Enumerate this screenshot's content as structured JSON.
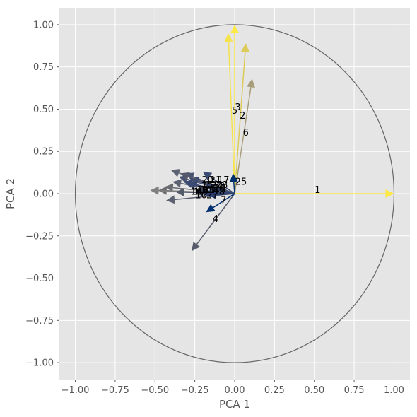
{
  "chart_data": {
    "type": "biplot",
    "xlabel": "PCA 1",
    "ylabel": "PCA 2",
    "xlim": [
      -1.1,
      1.1
    ],
    "ylim": [
      -1.1,
      1.1
    ],
    "xticks": [
      "−1.00",
      "−0.75",
      "−0.50",
      "−0.25",
      "0.00",
      "0.25",
      "0.50",
      "0.75",
      "1.00"
    ],
    "xtick_values": [
      -1.0,
      -0.75,
      -0.5,
      -0.25,
      0.0,
      0.25,
      0.5,
      0.75,
      1.0
    ],
    "yticks": [
      "−1.00",
      "−0.75",
      "−0.50",
      "−0.25",
      "0.00",
      "0.25",
      "0.50",
      "0.75",
      "1.00"
    ],
    "ytick_values": [
      -1.0,
      -0.75,
      -0.5,
      -0.25,
      0.0,
      0.25,
      0.5,
      0.75,
      1.0
    ],
    "grid": true,
    "unit_circle": true,
    "colors": {
      "background": "#E5E5E5",
      "grid": "#FFFFFF",
      "circle": "#666666"
    },
    "vectors": [
      {
        "label": "1",
        "x": 1.0,
        "y": 0.0,
        "color": "#FDE945",
        "label_pos": [
          0.52,
          0.02
        ]
      },
      {
        "label": "3",
        "x": 0.0,
        "y": 1.0,
        "color": "#FDE945",
        "label_pos": [
          0.02,
          0.51
        ]
      },
      {
        "label": "5",
        "x": -0.04,
        "y": 0.95,
        "color": "#F5E34E",
        "label_pos": [
          0.0,
          0.49
        ]
      },
      {
        "label": "2",
        "x": 0.07,
        "y": 0.89,
        "color": "#DCCB58",
        "label_pos": [
          0.05,
          0.46
        ]
      },
      {
        "label": "6",
        "x": 0.11,
        "y": 0.68,
        "color": "#A99E7A",
        "label_pos": [
          0.07,
          0.36
        ]
      },
      {
        "label": "25",
        "x": -0.01,
        "y": 0.12,
        "color": "#00306F",
        "label_pos": [
          0.04,
          0.07
        ]
      },
      {
        "label": "4",
        "x": -0.27,
        "y": -0.34,
        "color": "#555A6A",
        "label_pos": [
          -0.12,
          -0.15
        ]
      },
      {
        "label": "7",
        "x": -0.18,
        "y": -0.11,
        "color": "#00306F",
        "label_pos": [
          -0.07,
          -0.04
        ]
      },
      {
        "label": "20",
        "x": -0.2,
        "y": 0.13,
        "color": "#3A4A72",
        "label_pos": [
          -0.17,
          0.08
        ]
      },
      {
        "label": "21",
        "x": -0.31,
        "y": 0.12,
        "color": "#4A5370",
        "label_pos": [
          -0.12,
          0.08
        ]
      },
      {
        "label": "17",
        "x": -0.4,
        "y": 0.14,
        "color": "#5D6272",
        "label_pos": [
          -0.07,
          0.08
        ]
      },
      {
        "label": "15",
        "x": -0.28,
        "y": 0.09,
        "color": "#3A4A72",
        "label_pos": [
          -0.17,
          0.05
        ]
      },
      {
        "label": "12",
        "x": -0.35,
        "y": 0.1,
        "color": "#4A5370",
        "label_pos": [
          -0.15,
          0.05
        ]
      },
      {
        "label": "13",
        "x": -0.34,
        "y": 0.12,
        "color": "#555A6A",
        "label_pos": [
          -0.13,
          0.05
        ]
      },
      {
        "label": "23",
        "x": -0.39,
        "y": 0.07,
        "color": "#5D6272",
        "label_pos": [
          -0.11,
          0.05
        ]
      },
      {
        "label": "24",
        "x": -0.3,
        "y": 0.06,
        "color": "#3A4A72",
        "label_pos": [
          -0.09,
          0.03
        ]
      },
      {
        "label": "11",
        "x": -0.32,
        "y": 0.07,
        "color": "#3A4A72",
        "label_pos": [
          -0.16,
          0.02
        ]
      },
      {
        "label": "14",
        "x": -0.44,
        "y": 0.04,
        "color": "#6A6B70",
        "label_pos": [
          -0.2,
          0.02
        ]
      },
      {
        "label": "18",
        "x": -0.48,
        "y": 0.02,
        "color": "#6A6B70",
        "label_pos": [
          -0.18,
          0.02
        ]
      },
      {
        "label": "16",
        "x": -0.53,
        "y": 0.02,
        "color": "#808080",
        "label_pos": [
          -0.24,
          0.01
        ]
      },
      {
        "label": "19",
        "x": -0.37,
        "y": 0.01,
        "color": "#555A6A",
        "label_pos": [
          -0.22,
          0.01
        ]
      },
      {
        "label": "10",
        "x": -0.43,
        "y": -0.04,
        "color": "#5D6272",
        "label_pos": [
          -0.21,
          -0.01
        ]
      },
      {
        "label": "22",
        "x": -0.25,
        "y": 0.01,
        "color": "#3A4A72",
        "label_pos": [
          -0.2,
          0.0
        ]
      },
      {
        "label": "9",
        "x": -0.22,
        "y": 0.02,
        "color": "#3A4A72",
        "label_pos": [
          -0.12,
          0.01
        ]
      },
      {
        "label": "8",
        "x": -0.2,
        "y": 0.0,
        "color": "#2A3F70",
        "label_pos": [
          -0.08,
          0.01
        ]
      },
      {
        "label": "27",
        "x": -0.17,
        "y": -0.01,
        "color": "#2A3F70",
        "label_pos": [
          -0.14,
          -0.01
        ]
      },
      {
        "label": "26",
        "x": -0.15,
        "y": 0.03,
        "color": "#2A3F70",
        "label_pos": [
          -0.1,
          0.03
        ]
      },
      {
        "label": "28",
        "x": -0.18,
        "y": 0.05,
        "color": "#3A4A72",
        "label_pos": [
          -0.08,
          0.05
        ]
      }
    ]
  }
}
